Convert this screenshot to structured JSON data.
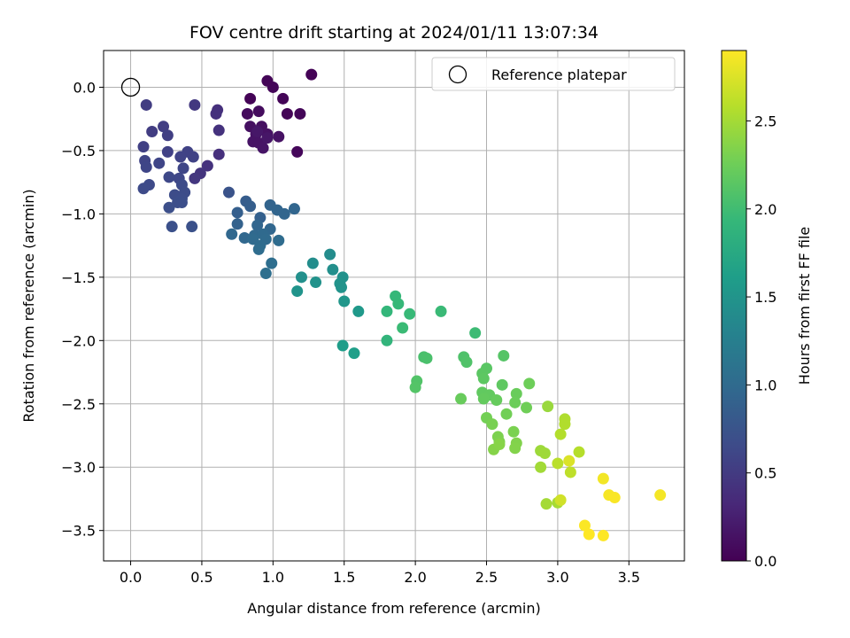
{
  "chart_data": {
    "type": "scatter",
    "title": "FOV centre drift starting at 2024/01/11 13:07:34",
    "xlabel": "Angular distance from reference (arcmin)",
    "ylabel": "Rotation from reference (arcmin)",
    "xlim": [
      -0.19,
      3.89
    ],
    "ylim": [
      -3.74,
      0.29
    ],
    "xticks": [
      0.0,
      0.5,
      1.0,
      1.5,
      2.0,
      2.5,
      3.0,
      3.5
    ],
    "xtick_labels": [
      "0.0",
      "0.5",
      "1.0",
      "1.5",
      "2.0",
      "2.5",
      "3.0",
      "3.5"
    ],
    "yticks": [
      0.0,
      -0.5,
      -1.0,
      -1.5,
      -2.0,
      -2.5,
      -3.0,
      -3.5
    ],
    "ytick_labels": [
      "0.0",
      "−0.5",
      "−1.0",
      "−1.5",
      "−2.0",
      "−2.5",
      "−3.0",
      "−3.5"
    ],
    "grid": true,
    "legend": {
      "placement": "top-right",
      "entries": [
        "Reference platepar"
      ]
    },
    "reference_point": {
      "x": 0.0,
      "y": 0.0
    },
    "colorbar": {
      "label": "Hours from first FF file",
      "range": [
        0.0,
        2.9
      ],
      "ticks": [
        0.0,
        0.5,
        1.0,
        1.5,
        2.0,
        2.5
      ],
      "tick_labels": [
        "0.0",
        "0.5",
        "1.0",
        "1.5",
        "2.0",
        "2.5"
      ],
      "colormap": "viridis",
      "colors": [
        "#440154",
        "#482878",
        "#3e4a89",
        "#31688e",
        "#26828e",
        "#1f9e89",
        "#35b779",
        "#6ece58",
        "#b5de2b",
        "#fde725"
      ]
    },
    "points": [
      [
        1.27,
        0.1,
        0.02
      ],
      [
        0.96,
        0.05,
        0.03
      ],
      [
        1.0,
        0.0,
        0.04
      ],
      [
        0.84,
        -0.09,
        0.02
      ],
      [
        1.07,
        -0.09,
        0.03
      ],
      [
        1.1,
        -0.21,
        0.03
      ],
      [
        1.19,
        -0.21,
        0.04
      ],
      [
        0.82,
        -0.21,
        0.08
      ],
      [
        0.9,
        -0.19,
        0.09
      ],
      [
        1.17,
        -0.51,
        0.05
      ],
      [
        0.84,
        -0.31,
        0.12
      ],
      [
        0.92,
        -0.31,
        0.12
      ],
      [
        0.96,
        -0.37,
        0.13
      ],
      [
        0.88,
        -0.37,
        0.14
      ],
      [
        1.04,
        -0.39,
        0.14
      ],
      [
        0.86,
        -0.43,
        0.15
      ],
      [
        0.9,
        -0.44,
        0.15
      ],
      [
        0.93,
        -0.48,
        0.16
      ],
      [
        0.96,
        -0.4,
        0.17
      ],
      [
        0.89,
        -0.35,
        0.18
      ],
      [
        0.61,
        -0.18,
        0.4
      ],
      [
        0.6,
        -0.21,
        0.41
      ],
      [
        0.62,
        -0.34,
        0.42
      ],
      [
        0.62,
        -0.53,
        0.4
      ],
      [
        0.54,
        -0.62,
        0.42
      ],
      [
        0.49,
        -0.68,
        0.44
      ],
      [
        0.45,
        -0.72,
        0.46
      ],
      [
        0.45,
        -0.14,
        0.47
      ],
      [
        0.11,
        -0.14,
        0.52
      ],
      [
        0.15,
        -0.35,
        0.52
      ],
      [
        0.23,
        -0.31,
        0.53
      ],
      [
        0.26,
        -0.38,
        0.54
      ],
      [
        0.09,
        -0.47,
        0.55
      ],
      [
        0.26,
        -0.51,
        0.56
      ],
      [
        0.4,
        -0.51,
        0.57
      ],
      [
        0.44,
        -0.55,
        0.57
      ],
      [
        0.35,
        -0.55,
        0.58
      ],
      [
        0.1,
        -0.58,
        0.59
      ],
      [
        0.2,
        -0.6,
        0.6
      ],
      [
        0.11,
        -0.63,
        0.6
      ],
      [
        0.37,
        -0.64,
        0.61
      ],
      [
        0.34,
        -0.72,
        0.62
      ],
      [
        0.27,
        -0.71,
        0.63
      ],
      [
        0.13,
        -0.77,
        0.64
      ],
      [
        0.09,
        -0.8,
        0.65
      ],
      [
        0.36,
        -0.77,
        0.66
      ],
      [
        0.38,
        -0.83,
        0.67
      ],
      [
        0.31,
        -0.85,
        0.67
      ],
      [
        0.36,
        -0.88,
        0.68
      ],
      [
        0.33,
        -0.91,
        0.69
      ],
      [
        0.36,
        -0.91,
        0.69
      ],
      [
        0.27,
        -0.95,
        0.7
      ],
      [
        0.29,
        -1.1,
        0.71
      ],
      [
        0.43,
        -1.1,
        0.72
      ],
      [
        0.69,
        -0.83,
        0.74
      ],
      [
        0.81,
        -0.9,
        0.85
      ],
      [
        0.84,
        -0.94,
        0.86
      ],
      [
        0.75,
        -0.99,
        0.87
      ],
      [
        0.91,
        -1.03,
        0.88
      ],
      [
        0.75,
        -1.08,
        0.9
      ],
      [
        0.98,
        -0.93,
        0.92
      ],
      [
        1.03,
        -0.97,
        0.93
      ],
      [
        1.08,
        -1.0,
        0.94
      ],
      [
        1.15,
        -0.96,
        0.95
      ],
      [
        0.89,
        -1.09,
        0.95
      ],
      [
        0.98,
        -1.12,
        0.96
      ],
      [
        0.71,
        -1.16,
        0.97
      ],
      [
        0.8,
        -1.19,
        0.97
      ],
      [
        0.87,
        -1.17,
        0.98
      ],
      [
        0.93,
        -1.16,
        0.99
      ],
      [
        0.86,
        -1.2,
        1.0
      ],
      [
        0.95,
        -1.2,
        1.01
      ],
      [
        1.04,
        -1.21,
        1.02
      ],
      [
        0.91,
        -1.25,
        1.02
      ],
      [
        0.9,
        -1.28,
        1.03
      ],
      [
        0.99,
        -1.39,
        1.04
      ],
      [
        0.95,
        -1.47,
        1.05
      ],
      [
        1.4,
        -1.32,
        1.4
      ],
      [
        1.28,
        -1.39,
        1.42
      ],
      [
        1.42,
        -1.44,
        1.44
      ],
      [
        1.2,
        -1.5,
        1.45
      ],
      [
        1.49,
        -1.5,
        1.46
      ],
      [
        1.3,
        -1.54,
        1.47
      ],
      [
        1.47,
        -1.55,
        1.48
      ],
      [
        1.48,
        -1.58,
        1.49
      ],
      [
        1.17,
        -1.61,
        1.5
      ],
      [
        1.5,
        -1.69,
        1.52
      ],
      [
        1.6,
        -1.77,
        1.55
      ],
      [
        1.49,
        -2.04,
        1.6
      ],
      [
        1.57,
        -2.1,
        1.62
      ],
      [
        1.8,
        -2.0,
        1.9
      ],
      [
        1.8,
        -1.77,
        1.92
      ],
      [
        1.86,
        -1.65,
        1.93
      ],
      [
        1.88,
        -1.71,
        1.94
      ],
      [
        1.96,
        -1.79,
        1.95
      ],
      [
        2.18,
        -1.77,
        1.96
      ],
      [
        1.91,
        -1.9,
        1.97
      ],
      [
        2.42,
        -1.94,
        1.98
      ],
      [
        2.06,
        -2.13,
        2.05
      ],
      [
        2.08,
        -2.14,
        2.06
      ],
      [
        2.34,
        -2.13,
        2.08
      ],
      [
        2.36,
        -2.17,
        2.09
      ],
      [
        2.01,
        -2.32,
        2.1
      ],
      [
        2.0,
        -2.37,
        2.11
      ],
      [
        2.62,
        -2.12,
        2.12
      ],
      [
        2.5,
        -2.22,
        2.14
      ],
      [
        2.47,
        -2.26,
        2.15
      ],
      [
        2.48,
        -2.3,
        2.16
      ],
      [
        2.61,
        -2.35,
        2.17
      ],
      [
        2.47,
        -2.41,
        2.18
      ],
      [
        2.52,
        -2.43,
        2.19
      ],
      [
        2.48,
        -2.46,
        2.2
      ],
      [
        2.57,
        -2.47,
        2.21
      ],
      [
        2.32,
        -2.46,
        2.22
      ],
      [
        2.71,
        -2.42,
        2.23
      ],
      [
        2.7,
        -2.49,
        2.24
      ],
      [
        2.8,
        -2.34,
        2.25
      ],
      [
        2.78,
        -2.53,
        2.26
      ],
      [
        2.64,
        -2.58,
        2.27
      ],
      [
        2.5,
        -2.61,
        2.28
      ],
      [
        2.54,
        -2.66,
        2.3
      ],
      [
        2.69,
        -2.72,
        2.31
      ],
      [
        2.58,
        -2.76,
        2.32
      ],
      [
        2.59,
        -2.8,
        2.33
      ],
      [
        2.71,
        -2.81,
        2.34
      ],
      [
        2.7,
        -2.85,
        2.35
      ],
      [
        2.55,
        -2.86,
        2.36
      ],
      [
        2.59,
        -2.82,
        2.37
      ],
      [
        2.93,
        -2.52,
        2.45
      ],
      [
        2.88,
        -2.87,
        2.47
      ],
      [
        2.91,
        -2.89,
        2.48
      ],
      [
        2.88,
        -3.0,
        2.49
      ],
      [
        2.92,
        -3.29,
        2.5
      ],
      [
        3.0,
        -3.28,
        2.51
      ],
      [
        3.05,
        -2.62,
        2.55
      ],
      [
        3.05,
        -2.66,
        2.56
      ],
      [
        3.02,
        -2.74,
        2.57
      ],
      [
        3.15,
        -2.88,
        2.58
      ],
      [
        3.0,
        -2.97,
        2.6
      ],
      [
        3.09,
        -3.04,
        2.62
      ],
      [
        3.02,
        -3.26,
        2.7
      ],
      [
        3.08,
        -2.95,
        2.75
      ],
      [
        3.32,
        -3.09,
        2.85
      ],
      [
        3.72,
        -3.22,
        2.86
      ],
      [
        3.36,
        -3.22,
        2.87
      ],
      [
        3.4,
        -3.24,
        2.88
      ],
      [
        3.19,
        -3.46,
        2.89
      ],
      [
        3.22,
        -3.53,
        2.9
      ],
      [
        3.32,
        -3.54,
        2.9
      ]
    ]
  }
}
